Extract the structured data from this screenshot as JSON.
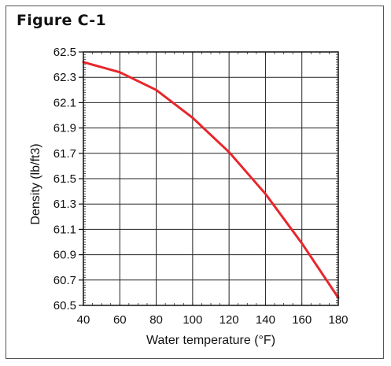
{
  "figure": {
    "title": "Figure C-1"
  },
  "chart_data": {
    "type": "line",
    "title": "",
    "xlabel": "Water temperature (°F)",
    "ylabel": "Density (lb/ft3)",
    "xlim": [
      40,
      180
    ],
    "ylim": [
      60.5,
      62.5
    ],
    "x_ticks": [
      40,
      60,
      80,
      100,
      120,
      140,
      160,
      180
    ],
    "y_ticks": [
      "60.5",
      "60.7",
      "60.9",
      "61.1",
      "61.3",
      "61.5",
      "61.7",
      "61.9",
      "62.1",
      "62.3",
      "62.5"
    ],
    "grid": true,
    "series": [
      {
        "color": "#e8262b",
        "x": [
          40,
          60,
          80,
          100,
          120,
          140,
          160,
          180
        ],
        "y": [
          62.42,
          62.34,
          62.2,
          61.98,
          61.71,
          61.38,
          60.99,
          60.56
        ]
      }
    ]
  }
}
